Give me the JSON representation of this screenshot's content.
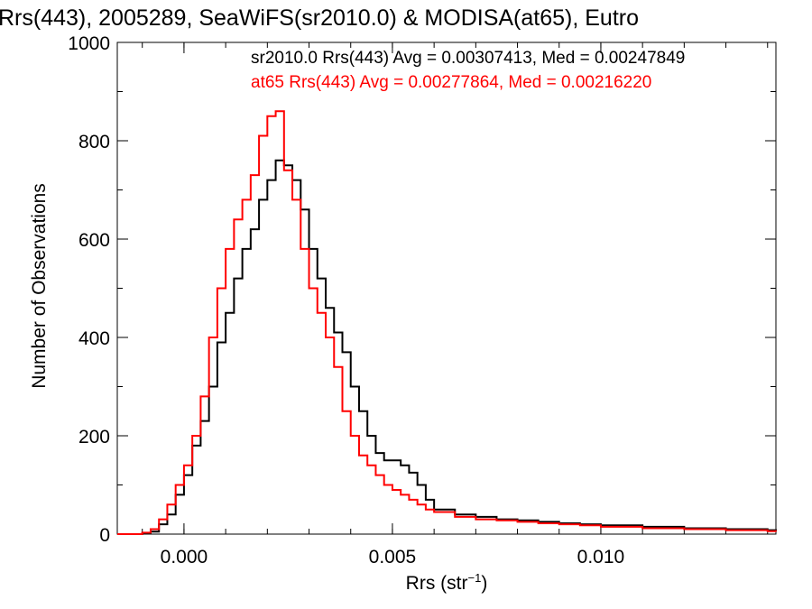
{
  "chart_data": {
    "type": "line",
    "title": "Rrs(443), 2005289, SeaWiFS(sr2010.0) & MODISA(at65), Eutro",
    "xlabel": "Rrs (str",
    "xlabel_superscript": "−1",
    "xlabel_suffix": ")",
    "ylabel": "Number of Observations",
    "xlim": [
      -0.0016,
      0.0142
    ],
    "ylim": [
      0,
      1000
    ],
    "x_tick_values": [
      0.0,
      0.005,
      0.01
    ],
    "x_tick_labels": [
      "0.000",
      "0.005",
      "0.010"
    ],
    "y_tick_values": [
      0,
      200,
      400,
      600,
      800,
      1000
    ],
    "y_tick_labels": [
      "0",
      "200",
      "400",
      "600",
      "800",
      "1000"
    ],
    "grid": false,
    "legend_position": "top-right",
    "series": [
      {
        "label": "sr2010.0 Rrs(443) Avg = 0.00307413, Med = 0.00247849",
        "color": "#000000",
        "points": [
          [
            -0.0016,
            0
          ],
          [
            -0.0012,
            0
          ],
          [
            -0.001,
            2
          ],
          [
            -0.0008,
            5
          ],
          [
            -0.0006,
            20
          ],
          [
            -0.0004,
            40
          ],
          [
            -0.0002,
            80
          ],
          [
            0.0,
            120
          ],
          [
            0.0002,
            180
          ],
          [
            0.0004,
            230
          ],
          [
            0.0006,
            300
          ],
          [
            0.0008,
            390
          ],
          [
            0.001,
            450
          ],
          [
            0.0012,
            520
          ],
          [
            0.0014,
            580
          ],
          [
            0.0016,
            620
          ],
          [
            0.0018,
            680
          ],
          [
            0.002,
            720
          ],
          [
            0.0022,
            760
          ],
          [
            0.0024,
            750
          ],
          [
            0.0026,
            720
          ],
          [
            0.0028,
            660
          ],
          [
            0.003,
            580
          ],
          [
            0.0032,
            520
          ],
          [
            0.0034,
            460
          ],
          [
            0.0036,
            410
          ],
          [
            0.0038,
            370
          ],
          [
            0.004,
            300
          ],
          [
            0.0042,
            250
          ],
          [
            0.0044,
            200
          ],
          [
            0.0046,
            165
          ],
          [
            0.0048,
            150
          ],
          [
            0.005,
            150
          ],
          [
            0.0052,
            140
          ],
          [
            0.0054,
            125
          ],
          [
            0.0056,
            100
          ],
          [
            0.0058,
            70
          ],
          [
            0.006,
            50
          ],
          [
            0.0065,
            40
          ],
          [
            0.007,
            35
          ],
          [
            0.0075,
            30
          ],
          [
            0.008,
            28
          ],
          [
            0.0085,
            25
          ],
          [
            0.009,
            22
          ],
          [
            0.0095,
            20
          ],
          [
            0.01,
            18
          ],
          [
            0.011,
            15
          ],
          [
            0.012,
            12
          ],
          [
            0.013,
            10
          ],
          [
            0.014,
            8
          ],
          [
            0.0142,
            7
          ]
        ]
      },
      {
        "label": "at65 Rrs(443) Avg = 0.00277864, Med = 0.00216220",
        "color": "#ff0000",
        "points": [
          [
            -0.0016,
            0
          ],
          [
            -0.0012,
            0
          ],
          [
            -0.001,
            3
          ],
          [
            -0.0008,
            10
          ],
          [
            -0.0006,
            30
          ],
          [
            -0.0004,
            60
          ],
          [
            -0.0002,
            100
          ],
          [
            0.0,
            140
          ],
          [
            0.0002,
            200
          ],
          [
            0.0004,
            280
          ],
          [
            0.0006,
            400
          ],
          [
            0.0008,
            500
          ],
          [
            0.001,
            580
          ],
          [
            0.0012,
            640
          ],
          [
            0.0014,
            680
          ],
          [
            0.0016,
            730
          ],
          [
            0.0018,
            810
          ],
          [
            0.002,
            850
          ],
          [
            0.0022,
            860
          ],
          [
            0.0024,
            740
          ],
          [
            0.0026,
            680
          ],
          [
            0.0028,
            580
          ],
          [
            0.003,
            500
          ],
          [
            0.0032,
            450
          ],
          [
            0.0034,
            400
          ],
          [
            0.0036,
            340
          ],
          [
            0.0038,
            250
          ],
          [
            0.004,
            200
          ],
          [
            0.0042,
            160
          ],
          [
            0.0044,
            140
          ],
          [
            0.0046,
            120
          ],
          [
            0.0048,
            100
          ],
          [
            0.005,
            90
          ],
          [
            0.0052,
            80
          ],
          [
            0.0054,
            70
          ],
          [
            0.0056,
            60
          ],
          [
            0.0058,
            50
          ],
          [
            0.006,
            45
          ],
          [
            0.0065,
            35
          ],
          [
            0.007,
            30
          ],
          [
            0.0075,
            28
          ],
          [
            0.008,
            25
          ],
          [
            0.0085,
            22
          ],
          [
            0.009,
            20
          ],
          [
            0.0095,
            18
          ],
          [
            0.01,
            15
          ],
          [
            0.011,
            12
          ],
          [
            0.012,
            10
          ],
          [
            0.013,
            8
          ],
          [
            0.014,
            6
          ],
          [
            0.0142,
            5
          ]
        ]
      }
    ]
  }
}
